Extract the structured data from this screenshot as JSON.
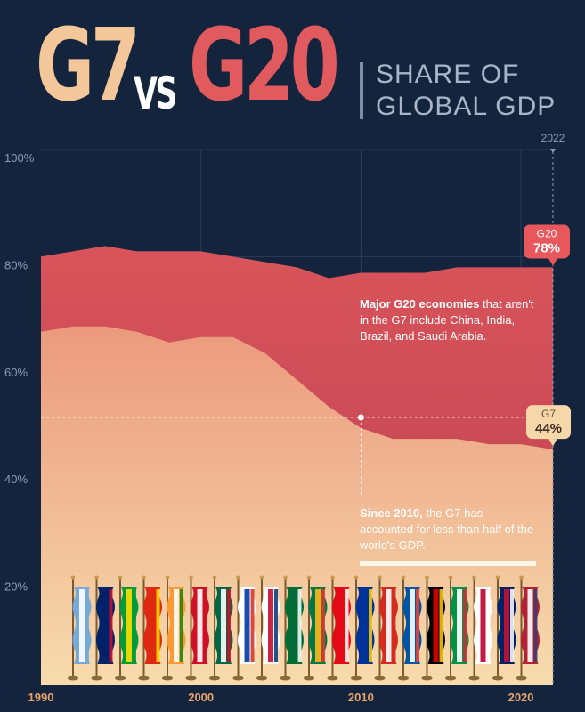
{
  "header": {
    "g7": "G7",
    "vs": "VS",
    "g20": "G20",
    "subtitle_line1": "SHARE OF",
    "subtitle_line2": "GLOBAL GDP"
  },
  "colors": {
    "background": "#14243d",
    "g20_band": "#d9545a",
    "g7_area_top": "#eb9a7c",
    "g7_area_bottom": "#f7dcae",
    "g7_title": "#f3c79a",
    "g20_title": "#e15a5e"
  },
  "annotations": {
    "g20_note_bold": "Major G20 economies",
    "g20_note_rest": "that aren't in the G7 include China, India, Brazil, and Saudi Arabia.",
    "g7_note_bold": "Since 2010,",
    "g7_note_rest": "the G7 has accounted for less than half of the world's GDP.",
    "year_marker": "2022"
  },
  "callouts": {
    "g20": {
      "name": "G20",
      "value": "78%"
    },
    "g7": {
      "name": "G7",
      "value": "44%"
    }
  },
  "flags": [
    "argentina-flag",
    "australia-flag",
    "brazil-flag",
    "china-flag",
    "india-flag",
    "indonesia-flag",
    "mexico-flag",
    "russia-flag",
    "south-korea-flag",
    "saudi-arabia-flag",
    "south-africa-flag",
    "turkey-flag",
    "eu-flag",
    "canada-flag",
    "france-flag",
    "germany-flag",
    "italy-flag",
    "japan-flag",
    "uk-flag",
    "usa-flag"
  ],
  "chart_data": {
    "type": "area",
    "x": [
      1990,
      1992,
      1994,
      1996,
      1998,
      2000,
      2002,
      2004,
      2006,
      2008,
      2010,
      2012,
      2014,
      2016,
      2018,
      2020,
      2022
    ],
    "series": [
      {
        "name": "G20",
        "values": [
          80,
          81,
          82,
          81,
          81,
          81,
          80,
          79,
          78,
          76,
          77,
          77,
          77,
          78,
          78,
          78,
          78
        ]
      },
      {
        "name": "G7",
        "values": [
          66,
          67,
          67,
          66,
          64,
          65,
          65,
          62,
          57,
          52,
          48,
          46,
          46,
          46,
          45,
          45,
          44
        ]
      }
    ],
    "ylim": [
      0,
      100
    ],
    "xlim": [
      1990,
      2022
    ],
    "y_ticks": [
      "20%",
      "40%",
      "60%",
      "80%",
      "100%"
    ],
    "y_tick_values": [
      20,
      40,
      60,
      80,
      100
    ],
    "x_ticks": [
      "1990",
      "2000",
      "2010",
      "2020"
    ],
    "x_tick_values": [
      1990,
      2000,
      2010,
      2020
    ],
    "threshold": 50,
    "threshold_year": 2010
  }
}
